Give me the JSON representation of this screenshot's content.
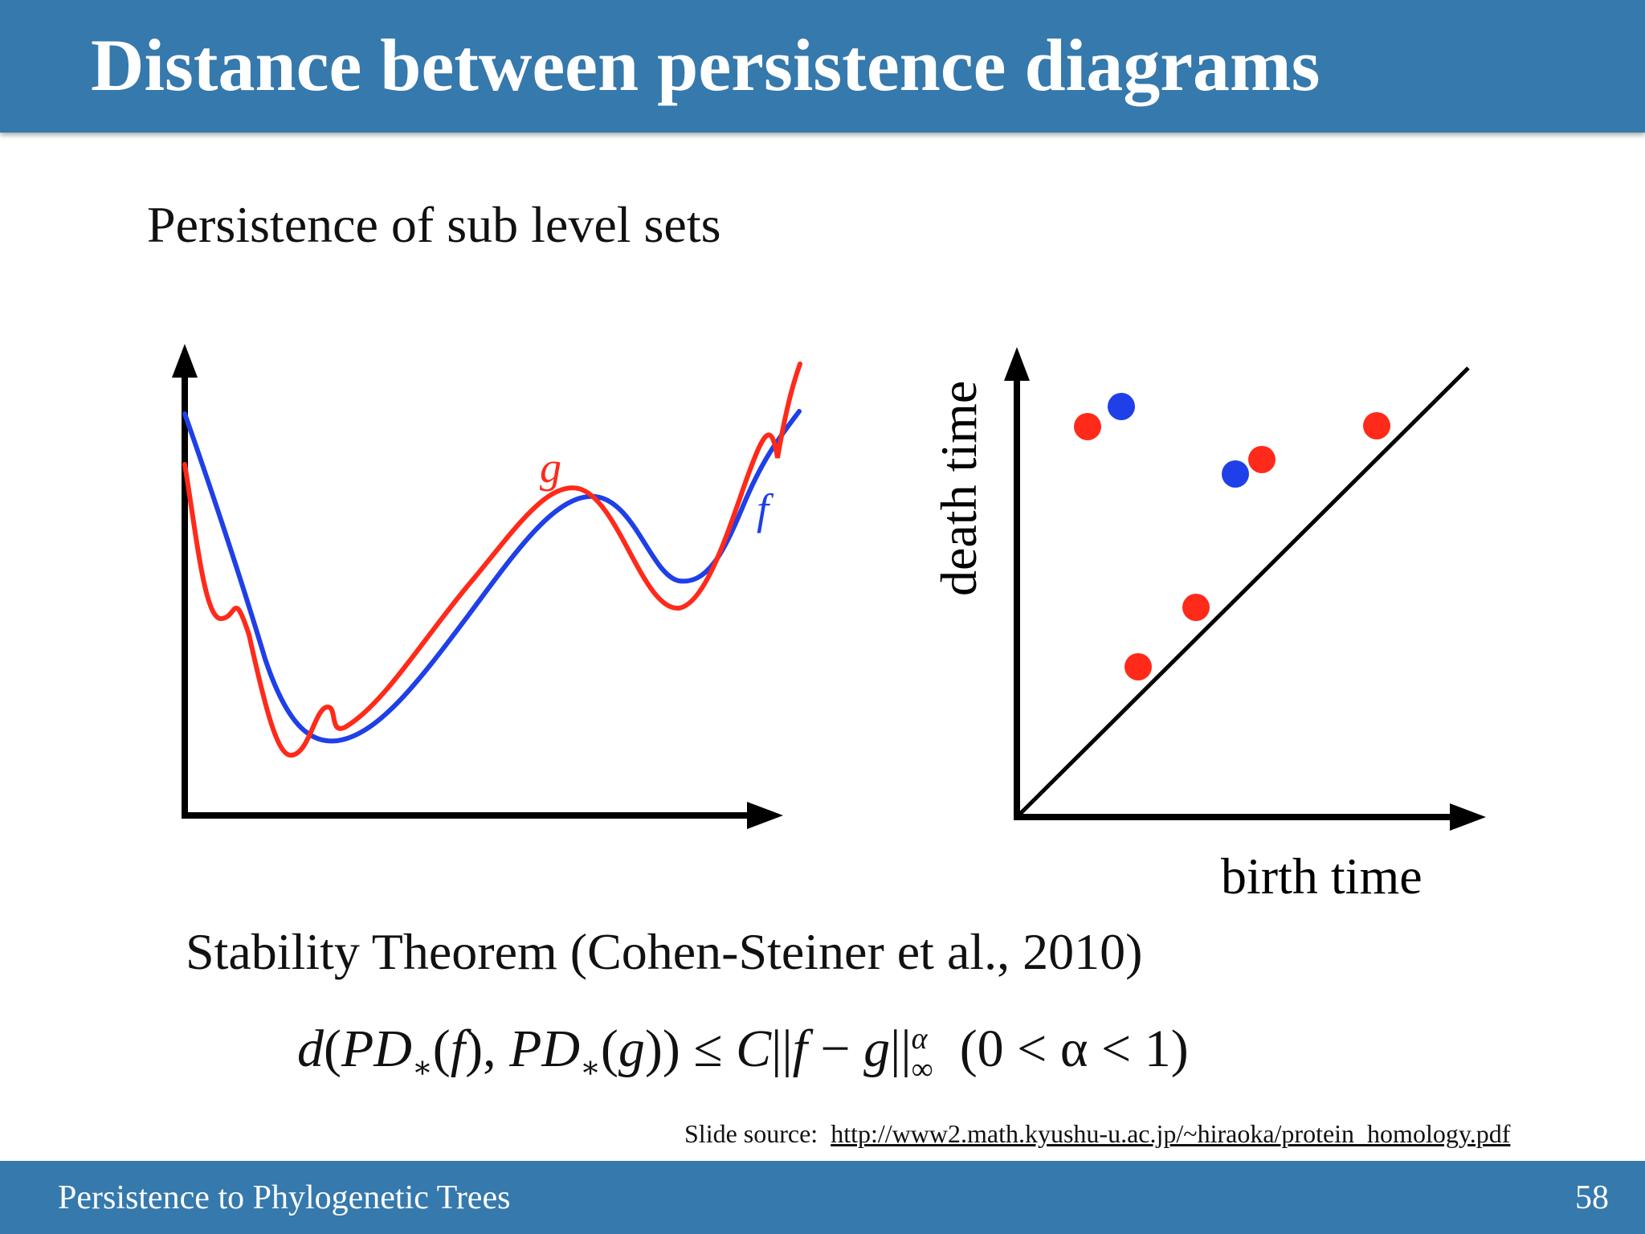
{
  "header": {
    "title": "Distance between persistence diagrams"
  },
  "subtitle": "Persistence of sub level sets",
  "left_plot": {
    "curve_g_label": "g",
    "curve_f_label": "f",
    "colors": {
      "g": "#ff2a1a",
      "f": "#1f3fe8"
    }
  },
  "right_plot": {
    "y_label": "death time",
    "x_label": "birth time",
    "colors": {
      "red_point": "#ff2a1a",
      "blue_point": "#1f3fe8"
    }
  },
  "theorem": "Stability Theorem (Cohen-Steiner et al., 2010)",
  "formula": {
    "lhs_d": "d",
    "pd": "PD",
    "star": "∗",
    "f": "f",
    "g": "g",
    "leq": "≤",
    "C": "C",
    "alpha": "α",
    "inf": "∞",
    "condition": "(0 < α < 1)"
  },
  "source": {
    "label": "Slide source:",
    "url": "http://www2.math.kyushu-u.ac.jp/~hiraoka/protein_homology.pdf"
  },
  "footer": {
    "title": "Persistence to Phylogenetic Trees",
    "page": "58"
  }
}
